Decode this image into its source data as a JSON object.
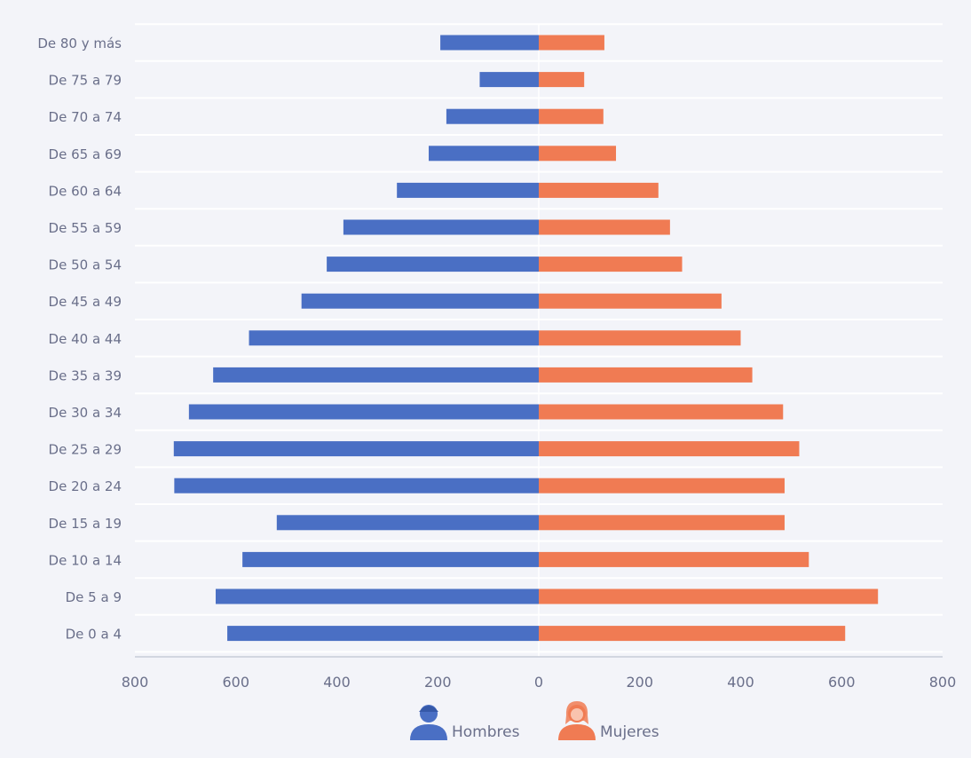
{
  "chart_data": {
    "type": "bar",
    "orientation": "horizontal",
    "layout": "population-pyramid",
    "title": "",
    "categories": [
      "De 80 y más",
      "De 75 a 79",
      "De 70 a 74",
      "De 65 a 69",
      "De 60 a 64",
      "De 55 a 59",
      "De 50 a 54",
      "De 45 a 49",
      "De 40 a 44",
      "De 35 a 39",
      "De 30 a 34",
      "De 25 a 29",
      "De 20 a 24",
      "De 15 a 19",
      "De 10 a 14",
      "De 5 a 9",
      "De 0 a 4"
    ],
    "series": [
      {
        "name": "Hombres",
        "color": "#4a6fc4",
        "side": "left",
        "icon": "male-user-icon",
        "values": [
          195,
          117,
          183,
          218,
          281,
          387,
          420,
          470,
          574,
          645,
          693,
          723,
          722,
          519,
          587,
          640,
          617
        ]
      },
      {
        "name": "Mujeres",
        "color": "#f07b53",
        "side": "right",
        "icon": "female-user-icon",
        "values": [
          130,
          90,
          128,
          153,
          237,
          260,
          284,
          362,
          400,
          423,
          484,
          516,
          487,
          487,
          535,
          672,
          607
        ]
      }
    ],
    "xaxis": {
      "ticks": [
        -800,
        -600,
        -400,
        -200,
        0,
        200,
        400,
        600,
        800
      ],
      "tick_labels": [
        "800",
        "600",
        "400",
        "200",
        "0",
        "200",
        "400",
        "600",
        "800"
      ],
      "range": [
        -800,
        800
      ]
    },
    "grid": true,
    "legend": "bottom-center"
  }
}
